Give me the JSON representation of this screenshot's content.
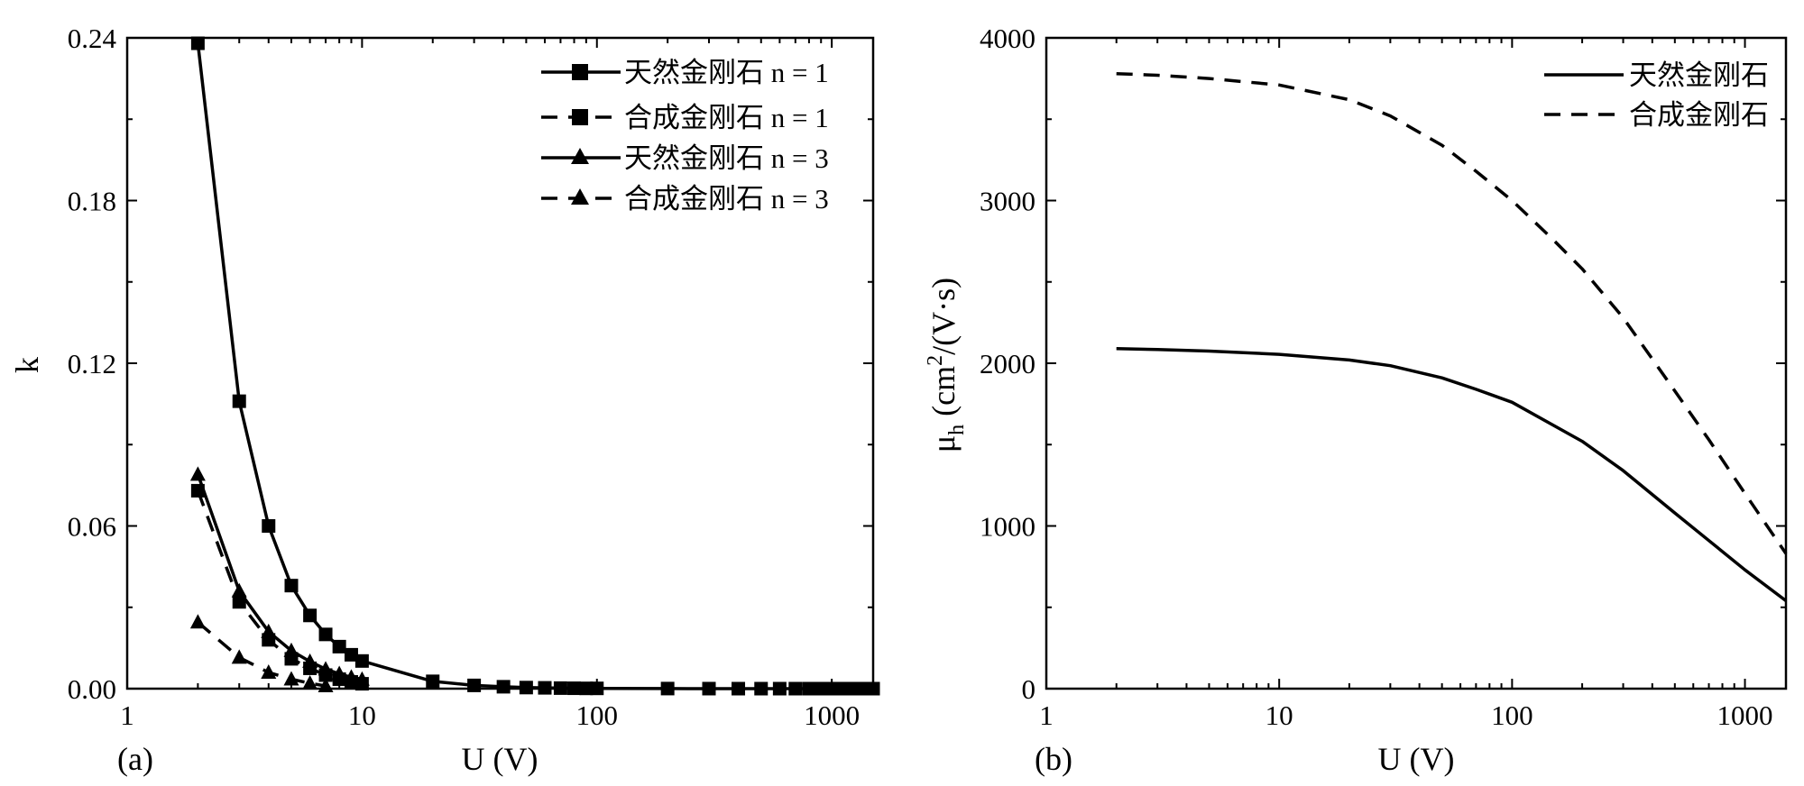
{
  "chart_data": [
    {
      "type": "line",
      "panel_label": "(a)",
      "xlabel": "U (V)",
      "ylabel": "k",
      "xscale": "log",
      "xlim": [
        1,
        1500
      ],
      "ylim": [
        0,
        0.24
      ],
      "x_ticks": [
        1,
        10,
        100,
        1000
      ],
      "x_tick_labels": [
        "1",
        "10",
        "100",
        "1000"
      ],
      "y_ticks": [
        0,
        0.06,
        0.12,
        0.18,
        0.24
      ],
      "y_tick_labels": [
        "0.00",
        "0.06",
        "0.12",
        "0.18",
        "0.24"
      ],
      "legend_position": "top-right",
      "series": [
        {
          "name": "天然金刚石 n = 1",
          "line_style": "solid",
          "marker": "square",
          "x": [
            2,
            3,
            4,
            5,
            6,
            7,
            8,
            9,
            10,
            20,
            30,
            40,
            50,
            60,
            70,
            80,
            90,
            100,
            200,
            300,
            400,
            500,
            600,
            700,
            800,
            900,
            1000,
            1100,
            1200,
            1300,
            1400,
            1500
          ],
          "y": [
            0.238,
            0.106,
            0.06,
            0.038,
            0.027,
            0.02,
            0.0155,
            0.0125,
            0.0102,
            0.0027,
            0.0012,
            0.0007,
            0.0004,
            0.0003,
            0.0002,
            0.00015,
            0.0001,
            0.0001,
            3e-05,
            1e-05,
            0,
            0,
            0,
            0,
            0,
            0,
            0,
            0,
            0,
            0,
            0,
            0
          ]
        },
        {
          "name": "合成金刚石 n = 1",
          "line_style": "dashed",
          "marker": "square",
          "x": [
            2,
            3,
            4,
            5,
            6,
            7,
            8,
            9,
            10
          ],
          "y": [
            0.073,
            0.032,
            0.018,
            0.011,
            0.0075,
            0.005,
            0.0035,
            0.0025,
            0.0018
          ]
        },
        {
          "name": "天然金刚石 n = 3",
          "line_style": "solid",
          "marker": "triangle",
          "x": [
            2,
            3,
            4,
            5,
            6,
            7,
            8,
            9,
            10
          ],
          "y": [
            0.079,
            0.036,
            0.021,
            0.014,
            0.01,
            0.0072,
            0.0055,
            0.0042,
            0.0034
          ]
        },
        {
          "name": "合成金刚石 n = 3",
          "line_style": "dashed",
          "marker": "triangle",
          "x": [
            2,
            3,
            4,
            5,
            6,
            7
          ],
          "y": [
            0.0245,
            0.0115,
            0.006,
            0.0035,
            0.002,
            0.001
          ]
        }
      ]
    },
    {
      "type": "line",
      "panel_label": "(b)",
      "xlabel": "U (V)",
      "ylabel_parts": {
        "mu": "μ",
        "mu_sub": "h",
        "open": " (cm",
        "sup": "2",
        "close": "/(V·s)"
      },
      "xscale": "log",
      "xlim": [
        1,
        1500
      ],
      "ylim": [
        0,
        4000
      ],
      "x_ticks": [
        1,
        10,
        100,
        1000
      ],
      "x_tick_labels": [
        "1",
        "10",
        "100",
        "1000"
      ],
      "y_ticks": [
        0,
        1000,
        2000,
        3000,
        4000
      ],
      "y_tick_labels": [
        "0",
        "1000",
        "2000",
        "3000",
        "4000"
      ],
      "legend_position": "top-right",
      "series": [
        {
          "name": "天然金刚石",
          "line_style": "solid",
          "x": [
            2,
            3,
            5,
            10,
            20,
            30,
            50,
            70,
            100,
            150,
            200,
            300,
            500,
            700,
            1000,
            1500
          ],
          "y": [
            2090,
            2085,
            2075,
            2055,
            2020,
            1985,
            1910,
            1840,
            1760,
            1620,
            1520,
            1340,
            1080,
            910,
            730,
            540
          ]
        },
        {
          "name": "合成金刚石",
          "line_style": "dashed",
          "x": [
            2,
            3,
            5,
            10,
            20,
            30,
            50,
            70,
            100,
            150,
            200,
            300,
            500,
            700,
            1000,
            1500
          ],
          "y": [
            3780,
            3770,
            3750,
            3710,
            3620,
            3520,
            3340,
            3180,
            3000,
            2760,
            2580,
            2280,
            1830,
            1530,
            1200,
            830
          ]
        }
      ]
    }
  ]
}
